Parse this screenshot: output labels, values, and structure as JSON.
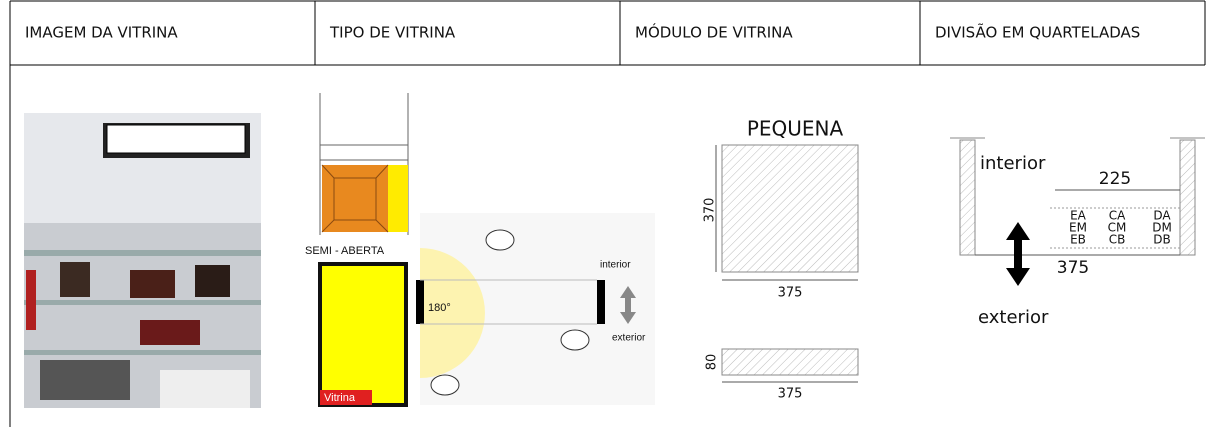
{
  "table": {
    "headers": [
      "IMAGEM DA VITRINA",
      "TIPO DE VITRINA",
      "MÓDULO DE VITRINA",
      "DIVISÃO EM QUARTELADAS"
    ]
  },
  "tipo": {
    "label": "SEMI - ABERTA",
    "tag": "Vitrina",
    "angle": "180°",
    "interior": "interior",
    "exterior": "exterior"
  },
  "modulo": {
    "title": "PEQUENA",
    "height": "370",
    "width": "375",
    "depth": "80",
    "depth_width": "375"
  },
  "divisao": {
    "interior": "interior",
    "width_top": "225",
    "cells": [
      [
        "EA",
        "CA",
        "DA"
      ],
      [
        "EM",
        "CM",
        "DM"
      ],
      [
        "EB",
        "CB",
        "DB"
      ]
    ],
    "width_bottom": "375",
    "exterior": "exterior"
  }
}
